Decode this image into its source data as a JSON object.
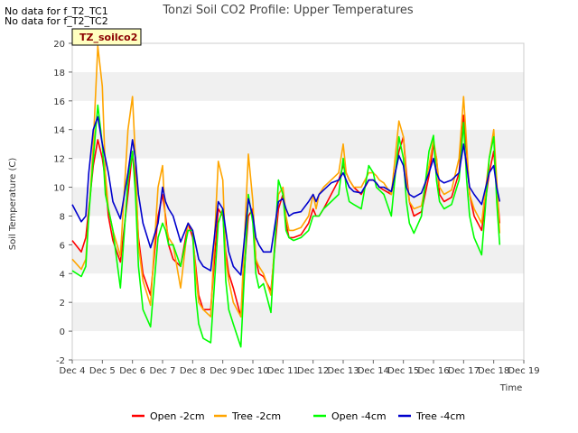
{
  "header": {
    "nodata_lines": [
      "No data for f_T2_TC1",
      "No data for f_T2_TC2"
    ],
    "site_badge": "TZ_soilco2"
  },
  "chart_data": {
    "type": "line",
    "title": "Tonzi Soil CO2 Profile: Upper Temperatures",
    "xlabel": "Time",
    "ylabel": "Soil Temperature (C)",
    "xlim": [
      4,
      19
    ],
    "ylim": [
      -2,
      20
    ],
    "x_ticks": [
      4,
      5,
      6,
      7,
      8,
      9,
      10,
      11,
      12,
      13,
      14,
      15,
      16,
      17,
      18,
      19
    ],
    "x_tick_labels": [
      "Dec 4",
      "Dec 5",
      "Dec 6",
      "Dec 7",
      "Dec 8",
      "Dec 9",
      "Dec 10",
      "Dec 11",
      "Dec 12",
      "Dec 13",
      "Dec 14",
      "Dec 15",
      "Dec 16",
      "Dec 17",
      "Dec 18",
      "Dec 19"
    ],
    "y_ticks": [
      -2,
      0,
      2,
      4,
      6,
      8,
      10,
      12,
      14,
      16,
      18,
      20
    ],
    "grid": "horizontal bands",
    "legend_position": "bottom",
    "series": [
      {
        "name": "Open -2cm",
        "color": "#ff0000",
        "x": [
          4.0,
          4.3,
          4.45,
          4.55,
          4.7,
          4.85,
          5.0,
          5.1,
          5.2,
          5.35,
          5.6,
          5.85,
          6.0,
          6.1,
          6.2,
          6.35,
          6.6,
          6.85,
          7.0,
          7.1,
          7.2,
          7.35,
          7.6,
          7.85,
          8.0,
          8.1,
          8.2,
          8.35,
          8.6,
          8.85,
          9.0,
          9.1,
          9.2,
          9.35,
          9.6,
          9.85,
          10.0,
          10.1,
          10.2,
          10.35,
          10.6,
          10.85,
          11.0,
          11.1,
          11.2,
          11.35,
          11.6,
          11.85,
          12.0,
          12.1,
          12.2,
          12.35,
          12.6,
          12.85,
          13.0,
          13.1,
          13.2,
          13.35,
          13.6,
          13.85,
          14.0,
          14.1,
          14.2,
          14.35,
          14.6,
          14.85,
          15.0,
          15.1,
          15.2,
          15.35,
          15.6,
          15.85,
          16.0,
          16.1,
          16.2,
          16.35,
          16.6,
          16.85,
          17.0,
          17.1,
          17.2,
          17.35,
          17.6,
          17.85,
          18.0,
          18.1,
          18.2
        ],
        "y": [
          6.3,
          5.5,
          6.5,
          8.5,
          11.5,
          13.3,
          12.0,
          10.5,
          8.0,
          6.3,
          4.8,
          9.5,
          12.5,
          10.5,
          6.5,
          4.0,
          2.5,
          8.0,
          9.5,
          8.0,
          6.0,
          5.0,
          4.5,
          7.5,
          6.5,
          4.5,
          2.5,
          1.5,
          1.5,
          8.5,
          8.0,
          5.5,
          4.0,
          3.0,
          1.0,
          8.0,
          8.5,
          5.0,
          4.0,
          3.8,
          2.8,
          8.5,
          9.5,
          7.5,
          6.5,
          6.5,
          6.7,
          7.5,
          8.5,
          8.0,
          8.0,
          8.5,
          9.5,
          10.5,
          11.5,
          11.0,
          10.5,
          10.0,
          9.5,
          10.5,
          10.5,
          10.3,
          10.0,
          9.8,
          9.5,
          12.5,
          13.5,
          11.0,
          9.0,
          8.0,
          8.3,
          10.8,
          13.0,
          12.0,
          9.5,
          9.0,
          9.3,
          11.0,
          15.0,
          12.5,
          9.5,
          8.0,
          7.0,
          11.0,
          12.5,
          10.0,
          7.5
        ]
      },
      {
        "name": "Tree -2cm",
        "color": "#ffa500",
        "x": [
          4.0,
          4.3,
          4.45,
          4.55,
          4.7,
          4.85,
          5.0,
          5.1,
          5.2,
          5.35,
          5.6,
          5.85,
          6.0,
          6.1,
          6.2,
          6.35,
          6.6,
          6.85,
          7.0,
          7.1,
          7.2,
          7.35,
          7.6,
          7.85,
          8.0,
          8.1,
          8.2,
          8.35,
          8.6,
          8.85,
          9.0,
          9.1,
          9.2,
          9.35,
          9.6,
          9.85,
          10.0,
          10.1,
          10.2,
          10.35,
          10.6,
          10.85,
          11.0,
          11.1,
          11.2,
          11.35,
          11.6,
          11.85,
          12.0,
          12.1,
          12.2,
          12.35,
          12.6,
          12.85,
          13.0,
          13.1,
          13.2,
          13.35,
          13.6,
          13.85,
          14.0,
          14.1,
          14.2,
          14.35,
          14.6,
          14.85,
          15.0,
          15.1,
          15.2,
          15.35,
          15.6,
          15.85,
          16.0,
          16.1,
          16.2,
          16.35,
          16.6,
          16.85,
          17.0,
          17.1,
          17.2,
          17.35,
          17.6,
          17.85,
          18.0,
          18.1,
          18.2
        ],
        "y": [
          5.0,
          4.3,
          5.0,
          8.0,
          13.0,
          19.8,
          17.0,
          11.0,
          8.5,
          7.0,
          5.2,
          14.0,
          16.3,
          12.0,
          6.0,
          3.5,
          1.8,
          10.0,
          11.5,
          7.5,
          6.5,
          6.0,
          3.0,
          7.5,
          7.0,
          4.0,
          2.0,
          1.5,
          1.0,
          11.8,
          10.5,
          5.0,
          3.5,
          2.0,
          1.0,
          12.3,
          9.0,
          5.0,
          4.5,
          4.0,
          2.5,
          9.5,
          10.0,
          8.0,
          7.0,
          7.0,
          7.2,
          8.0,
          9.5,
          8.5,
          9.5,
          10.0,
          10.5,
          11.0,
          13.0,
          11.0,
          10.5,
          10.0,
          10.0,
          11.0,
          11.0,
          10.8,
          10.5,
          10.3,
          9.5,
          14.6,
          13.5,
          10.5,
          9.0,
          8.5,
          8.7,
          11.5,
          13.3,
          12.0,
          10.0,
          9.5,
          9.8,
          12.0,
          16.3,
          13.0,
          9.5,
          8.5,
          7.5,
          12.0,
          14.0,
          10.5,
          6.8
        ]
      },
      {
        "name": "Open -4cm",
        "color": "#00ff00",
        "x": [
          4.0,
          4.3,
          4.45,
          4.55,
          4.7,
          4.85,
          5.0,
          5.1,
          5.2,
          5.35,
          5.6,
          5.85,
          6.0,
          6.1,
          6.2,
          6.35,
          6.6,
          6.85,
          7.0,
          7.1,
          7.2,
          7.35,
          7.6,
          7.85,
          8.0,
          8.1,
          8.2,
          8.35,
          8.6,
          8.85,
          9.0,
          9.1,
          9.2,
          9.35,
          9.6,
          9.85,
          10.0,
          10.1,
          10.2,
          10.35,
          10.6,
          10.85,
          11.0,
          11.1,
          11.2,
          11.35,
          11.6,
          11.85,
          12.0,
          12.1,
          12.2,
          12.35,
          12.6,
          12.85,
          13.0,
          13.1,
          13.2,
          13.35,
          13.6,
          13.85,
          14.0,
          14.1,
          14.2,
          14.35,
          14.6,
          14.85,
          15.0,
          15.1,
          15.2,
          15.35,
          15.6,
          15.85,
          16.0,
          16.1,
          16.2,
          16.35,
          16.6,
          16.85,
          17.0,
          17.1,
          17.2,
          17.35,
          17.6,
          17.85,
          18.0,
          18.1,
          18.2
        ],
        "y": [
          4.2,
          3.8,
          4.5,
          8.0,
          12.0,
          15.7,
          13.0,
          9.5,
          8.5,
          7.0,
          3.0,
          10.5,
          12.5,
          9.5,
          4.5,
          1.5,
          0.3,
          6.5,
          7.5,
          7.0,
          6.0,
          6.0,
          4.5,
          7.0,
          7.0,
          2.5,
          0.5,
          -0.5,
          -0.8,
          7.5,
          8.5,
          3.5,
          1.5,
          0.5,
          -1.1,
          9.5,
          7.5,
          4.0,
          3.0,
          3.3,
          1.3,
          10.5,
          9.5,
          7.0,
          6.5,
          6.3,
          6.5,
          7.0,
          8.0,
          8.0,
          8.0,
          8.5,
          9.0,
          9.5,
          12.0,
          10.0,
          9.0,
          8.8,
          8.5,
          11.5,
          11.0,
          10.0,
          9.8,
          9.5,
          8.0,
          13.5,
          12.0,
          9.0,
          7.5,
          6.8,
          8.0,
          12.5,
          13.6,
          10.5,
          9.0,
          8.5,
          8.8,
          10.5,
          14.5,
          10.5,
          8.0,
          6.5,
          5.3,
          12.0,
          13.5,
          9.0,
          6.0
        ]
      },
      {
        "name": "Tree -4cm",
        "color": "#0000cd",
        "x": [
          4.0,
          4.3,
          4.45,
          4.55,
          4.7,
          4.85,
          5.0,
          5.1,
          5.2,
          5.35,
          5.6,
          5.85,
          6.0,
          6.1,
          6.2,
          6.35,
          6.6,
          6.85,
          7.0,
          7.1,
          7.2,
          7.35,
          7.6,
          7.85,
          8.0,
          8.1,
          8.2,
          8.35,
          8.6,
          8.85,
          9.0,
          9.1,
          9.2,
          9.35,
          9.6,
          9.85,
          10.0,
          10.1,
          10.2,
          10.35,
          10.6,
          10.85,
          11.0,
          11.1,
          11.2,
          11.35,
          11.6,
          11.85,
          12.0,
          12.1,
          12.2,
          12.35,
          12.6,
          12.85,
          13.0,
          13.1,
          13.2,
          13.35,
          13.6,
          13.85,
          14.0,
          14.1,
          14.2,
          14.35,
          14.6,
          14.85,
          15.0,
          15.1,
          15.2,
          15.35,
          15.6,
          15.85,
          16.0,
          16.1,
          16.2,
          16.35,
          16.6,
          16.85,
          17.0,
          17.1,
          17.2,
          17.35,
          17.6,
          17.85,
          18.0,
          18.1,
          18.2
        ],
        "y": [
          8.8,
          7.6,
          8.0,
          11.0,
          14.0,
          14.9,
          13.0,
          12.0,
          11.0,
          9.0,
          7.8,
          11.0,
          13.3,
          12.0,
          9.5,
          7.5,
          5.8,
          7.5,
          10.0,
          9.0,
          8.5,
          8.0,
          6.2,
          7.5,
          7.0,
          6.0,
          5.0,
          4.5,
          4.2,
          9.0,
          8.5,
          7.0,
          5.5,
          4.5,
          3.9,
          9.2,
          8.0,
          6.5,
          6.0,
          5.5,
          5.5,
          9.0,
          9.2,
          8.5,
          8.0,
          8.2,
          8.3,
          9.0,
          9.5,
          9.0,
          9.5,
          9.8,
          10.3,
          10.5,
          11.0,
          10.5,
          10.0,
          9.7,
          9.6,
          10.5,
          10.5,
          10.3,
          10.0,
          10.0,
          9.7,
          12.2,
          11.5,
          10.0,
          9.5,
          9.3,
          9.6,
          11.0,
          12.0,
          11.0,
          10.5,
          10.3,
          10.5,
          11.0,
          13.0,
          11.5,
          10.0,
          9.5,
          8.8,
          11.0,
          11.5,
          10.0,
          9.0
        ]
      }
    ]
  }
}
